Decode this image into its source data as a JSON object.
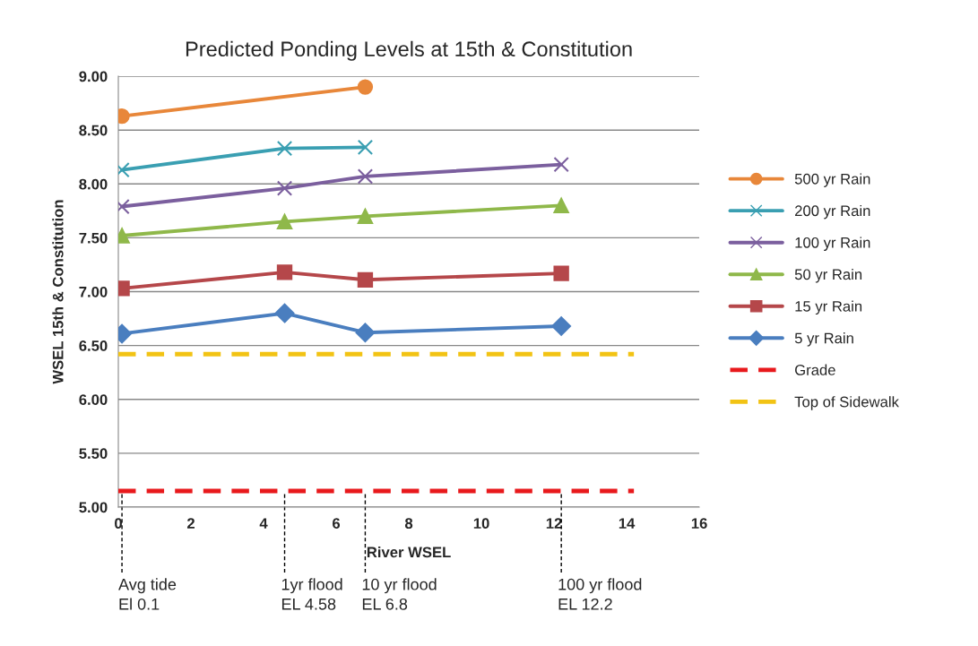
{
  "chart_data": {
    "type": "line",
    "title": "Predicted Ponding Levels at 15th & Constitution",
    "xlabel": "River WSEL",
    "ylabel": "WSEL 15th & Constitution",
    "x": [
      0.1,
      4.58,
      6.8,
      12.2
    ],
    "series": [
      {
        "name": "500 yr Rain",
        "color": "#e8873a",
        "marker": "circle",
        "x": [
          0.1,
          6.8
        ],
        "values": [
          8.63,
          8.9
        ]
      },
      {
        "name": "200 yr Rain",
        "color": "#3a9fb2",
        "marker": "cross",
        "x": [
          0.1,
          4.58,
          6.8
        ],
        "values": [
          8.13,
          8.33,
          8.34
        ]
      },
      {
        "name": "100 yr Rain",
        "color": "#7b5f9e",
        "marker": "cross",
        "values": [
          7.79,
          7.96,
          8.07,
          8.18
        ]
      },
      {
        "name": "50 yr Rain",
        "color": "#8fb84a",
        "marker": "triangle",
        "values": [
          7.52,
          7.65,
          7.7,
          7.8
        ]
      },
      {
        "name": "15 yr Rain",
        "color": "#b5474a",
        "marker": "square",
        "values": [
          7.03,
          7.18,
          7.11,
          7.17
        ]
      },
      {
        "name": "5 yr Rain",
        "color": "#4a7ebf",
        "marker": "diamond",
        "values": [
          6.61,
          6.8,
          6.62,
          6.68
        ]
      },
      {
        "name": "Grade",
        "color": "#e8191c",
        "marker": "none",
        "line_style": "dashed",
        "x": [
          0,
          14.2
        ],
        "values": [
          5.15,
          5.15
        ]
      },
      {
        "name": "Top of Sidewalk",
        "color": "#f2c314",
        "marker": "none",
        "line_style": "dashed",
        "x": [
          0,
          14.2
        ],
        "values": [
          6.42,
          6.42
        ]
      }
    ],
    "xlim": [
      0,
      16
    ],
    "xticks": [
      0,
      2,
      4,
      6,
      8,
      10,
      12,
      14,
      16
    ],
    "ylim": [
      5,
      9
    ],
    "yticks": [
      {
        "value": 5,
        "label": "5.00"
      },
      {
        "value": 5.5,
        "label": "5.50"
      },
      {
        "value": 6,
        "label": "6.00"
      },
      {
        "value": 6.5,
        "label": "6.50"
      },
      {
        "value": 7,
        "label": "7.00"
      },
      {
        "value": 7.5,
        "label": "7.50"
      },
      {
        "value": 8,
        "label": "8.00"
      },
      {
        "value": 8.5,
        "label": "8.50"
      },
      {
        "value": 9,
        "label": "9.00"
      }
    ],
    "ref_lines": [
      {
        "axis": "x",
        "value": 0.1,
        "label": "Avg tide\nEl 0.1",
        "color": "#000000",
        "line_style": "dashed"
      },
      {
        "axis": "x",
        "value": 4.58,
        "label": "1yr flood\nEL 4.58",
        "color": "#000000",
        "line_style": "dashed"
      },
      {
        "axis": "x",
        "value": 6.8,
        "label": "10 yr flood\nEL 6.8",
        "color": "#000000",
        "line_style": "dashed"
      },
      {
        "axis": "x",
        "value": 12.2,
        "label": "100 yr flood\nEL 12.2",
        "color": "#000000",
        "line_style": "dashed"
      }
    ],
    "grid": "y",
    "legend": "right"
  }
}
